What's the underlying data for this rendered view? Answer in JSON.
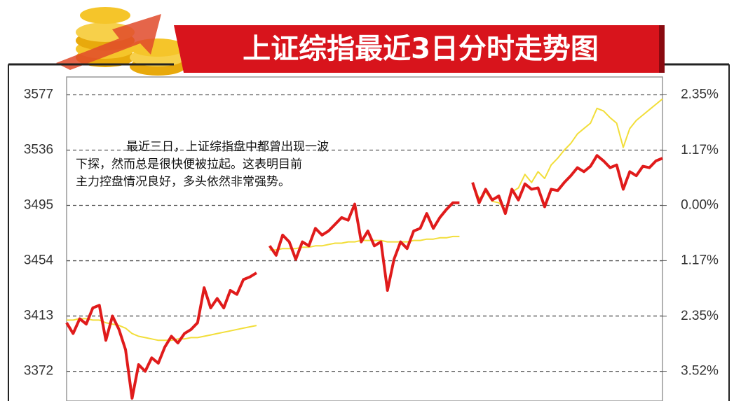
{
  "chart_data": {
    "type": "line",
    "title": "上证综指最近3日分时走势图",
    "annotation": [
      "最近三日，上证综指盘中都曾出现一波",
      "下探，然而总是很快便被拉起。这表明目前",
      "主力控盘情况良好，多头依然非常强势。"
    ],
    "ylim": [
      3350,
      3598
    ],
    "yticks": [
      3577,
      3536,
      3495,
      3454,
      3413,
      3372
    ],
    "y2lim": [
      -4.15,
      2.95
    ],
    "y2ticks": [
      {
        "value": 2.35,
        "label": "2.35%"
      },
      {
        "value": 1.17,
        "label": "1.17%"
      },
      {
        "value": 0,
        "label": "0.00%"
      },
      {
        "value": -1.17,
        "label": "1.17%"
      },
      {
        "value": -2.35,
        "label": "2.35%"
      },
      {
        "value": -3.52,
        "label": "3.52%"
      }
    ],
    "grid": true,
    "series": [
      {
        "color": "#e01b1b",
        "values": [
          3408,
          3400,
          3411,
          3407,
          3419,
          3421,
          3395,
          3413,
          3403,
          3388,
          3352,
          3377,
          3372,
          3382,
          3378,
          3390,
          3398,
          3393,
          3400,
          3403,
          3408,
          3434,
          3419,
          3426,
          3419,
          3432,
          3429,
          3440,
          3442,
          3445,
          null,
          3465,
          3458,
          3473,
          3468,
          3455,
          3468,
          3465,
          3478,
          3473,
          3476,
          3481,
          3486,
          3484,
          3496,
          3468,
          3476,
          3465,
          3468,
          3432,
          3455,
          3468,
          3463,
          3476,
          3478,
          3489,
          3478,
          3486,
          3492,
          3497,
          3497,
          null,
          3512,
          3497,
          3507,
          3499,
          3502,
          3489,
          3507,
          3499,
          3511,
          3507,
          3508,
          3494,
          3507,
          3506,
          3512,
          3517,
          3523,
          3520,
          3524,
          3532,
          3528,
          3523,
          3525,
          3507,
          3520,
          3517,
          3524,
          3523,
          3528,
          3530
        ]
      },
      {
        "color": "#f2de3a",
        "values": [
          3410,
          3410,
          3411,
          3411,
          3410,
          3410,
          3408,
          3407,
          3406,
          3404,
          3400,
          3398,
          3397,
          3396,
          3395,
          3395,
          3395,
          3396,
          3396,
          3397,
          3397,
          3398,
          3399,
          3400,
          3401,
          3402,
          3403,
          3404,
          3405,
          3406,
          null,
          3462,
          3462,
          3463,
          3463,
          3463,
          3464,
          3464,
          3465,
          3465,
          3466,
          3467,
          3467,
          3468,
          3468,
          3469,
          3469,
          3469,
          3469,
          3468,
          3468,
          3468,
          3468,
          3469,
          3469,
          3470,
          3470,
          3471,
          3471,
          3472,
          3472,
          null,
          3512,
          3500,
          3505,
          3498,
          3497,
          3492,
          3505,
          3508,
          3518,
          3512,
          3520,
          3515,
          3525,
          3530,
          3536,
          3541,
          3548,
          3552,
          3556,
          3567,
          3565,
          3560,
          3556,
          3538,
          3552,
          3558,
          3562,
          3566,
          3570,
          3574
        ]
      }
    ]
  }
}
